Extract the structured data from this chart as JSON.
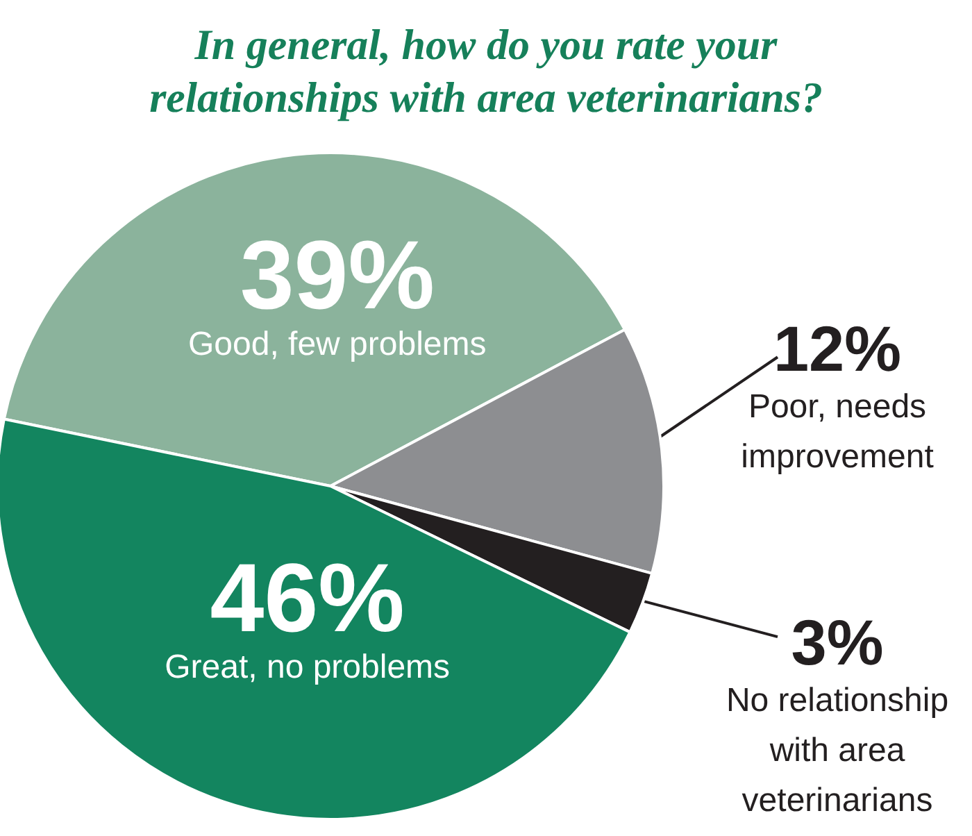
{
  "chart_data": {
    "type": "pie",
    "title": "In general, how do you rate your relationships with area veterinarians?",
    "categories": [
      "Good, few problems",
      "Poor, needs improvement",
      "No relationship with area veterinarians",
      "Great, no problems"
    ],
    "values": [
      39,
      12,
      3,
      46
    ],
    "colors": [
      "#8bb39c",
      "#8d8e91",
      "#231f20",
      "#13855f"
    ],
    "value_labels": [
      "39%",
      "12%",
      "3%",
      "46%"
    ]
  }
}
